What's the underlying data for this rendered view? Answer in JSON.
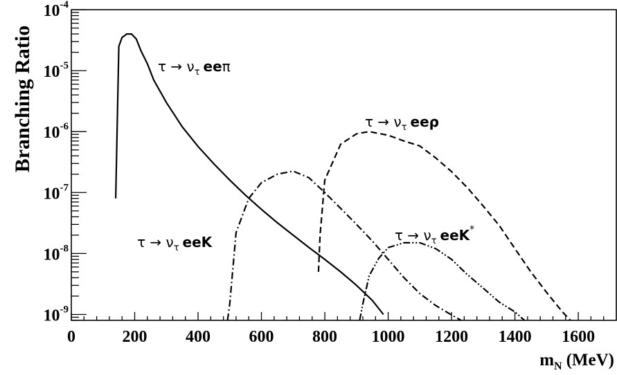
{
  "chart_data": {
    "type": "line",
    "title": "",
    "xlabel": "m",
    "xlabel_sub": "N",
    "xlabel_unit": "(MeV)",
    "ylabel": "Branching Ratio",
    "xlim": [
      0,
      1720
    ],
    "ylim": [
      8e-10,
      0.0001
    ],
    "yscale": "log",
    "grid": false,
    "x_ticks": [
      0,
      200,
      400,
      600,
      800,
      1000,
      1200,
      1400,
      1600
    ],
    "y_ticks": [
      {
        "value": 1e-09,
        "base": "10",
        "exp": "-9"
      },
      {
        "value": 1e-08,
        "base": "10",
        "exp": "-8"
      },
      {
        "value": 1e-07,
        "base": "10",
        "exp": "-7"
      },
      {
        "value": 1e-06,
        "base": "10",
        "exp": "-6"
      },
      {
        "value": 1e-05,
        "base": "10",
        "exp": "-5"
      },
      {
        "value": 0.0001,
        "base": "10",
        "exp": "-4"
      }
    ],
    "series": [
      {
        "label_parts": {
          "prefix": "τ → ν",
          "sub": "τ",
          "bold": "ee",
          "suffix": "π",
          "sup": ""
        },
        "style": "solid",
        "x": [
          140,
          150,
          160,
          175,
          190,
          205,
          220,
          240,
          260,
          300,
          350,
          400,
          450,
          500,
          550,
          600,
          650,
          700,
          750,
          800,
          850,
          900,
          950,
          985
        ],
        "y": [
          8e-08,
          2.5e-05,
          3.5e-05,
          4e-05,
          4e-05,
          3.3e-05,
          2.1e-05,
          1.3e-05,
          7e-06,
          3e-06,
          1.2e-06,
          5.7e-07,
          2.95e-07,
          1.6e-07,
          9e-08,
          5.3e-08,
          3.2e-08,
          2e-08,
          1.25e-08,
          8e-09,
          5e-09,
          3e-09,
          1.7e-09,
          1e-09
        ]
      },
      {
        "label_parts": {
          "prefix": "τ → ν",
          "sub": "τ",
          "bold": "eeK",
          "suffix": "",
          "sup": ""
        },
        "style": "dashdot",
        "x": [
          493,
          500,
          520,
          560,
          600,
          650,
          700,
          750,
          800,
          850,
          900,
          950,
          1000,
          1050,
          1100,
          1150,
          1200,
          1230
        ],
        "y": [
          8e-10,
          1.5e-09,
          2.2e-08,
          8e-08,
          1.45e-07,
          2e-07,
          2.25e-07,
          1.75e-07,
          1e-07,
          5.5e-08,
          3e-08,
          1.6e-08,
          8e-09,
          4e-09,
          2.2e-09,
          1.4e-09,
          9.8e-10,
          8e-10
        ]
      },
      {
        "label_parts": {
          "prefix": "τ → ν",
          "sub": "τ",
          "bold": "eeρ",
          "suffix": "",
          "sup": ""
        },
        "style": "dashed",
        "x": [
          780,
          785,
          800,
          850,
          900,
          940,
          1000,
          1050,
          1100,
          1150,
          1200,
          1250,
          1300,
          1350,
          1400,
          1450,
          1500,
          1550,
          1575
        ],
        "y": [
          5e-09,
          2e-08,
          1.6e-07,
          6.2e-07,
          9.2e-07,
          1e-06,
          8.7e-07,
          7e-07,
          5.8e-07,
          3.7e-07,
          2.2e-07,
          1.2e-07,
          6e-08,
          2.9e-08,
          1.2e-08,
          5e-09,
          2.3e-09,
          1.1e-09,
          8e-10
        ]
      },
      {
        "label_parts": {
          "prefix": "τ → ν",
          "sub": "τ",
          "bold": "eeK",
          "suffix": "",
          "sup": "*"
        },
        "style": "dashdotdot",
        "x": [
          910,
          920,
          940,
          970,
          1000,
          1050,
          1100,
          1150,
          1200,
          1250,
          1300,
          1350,
          1400,
          1430
        ],
        "y": [
          8e-10,
          1.5e-09,
          4.3e-09,
          8.3e-09,
          1.25e-08,
          1.5e-08,
          1.5e-08,
          1.2e-08,
          8e-09,
          4.5e-09,
          2.7e-09,
          1.6e-09,
          1.1e-09,
          8e-10
        ]
      }
    ]
  }
}
